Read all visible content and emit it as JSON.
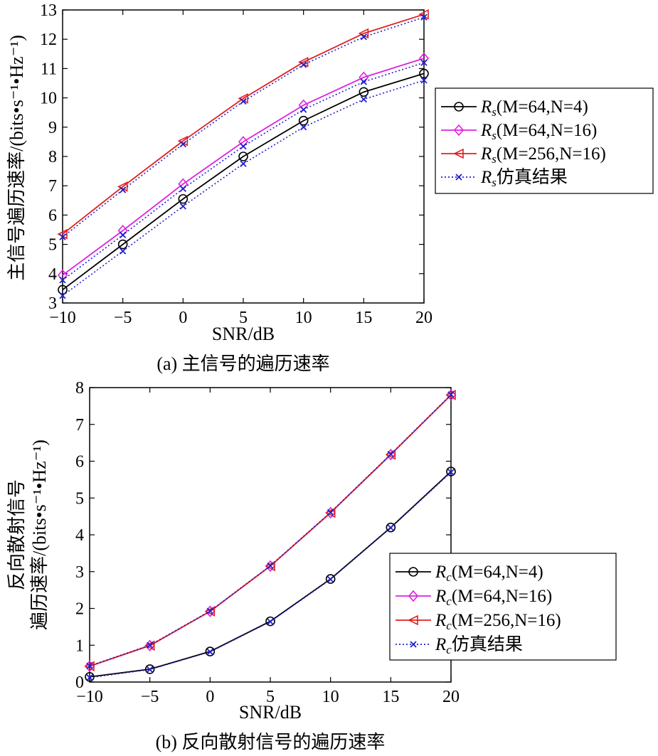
{
  "chart_data": [
    {
      "type": "line",
      "caption": "(a) 主信号的遍历速率",
      "xlabel": "SNR/dB",
      "ylabel": "主信号遍历速率/(bits•s⁻¹•Hz⁻¹)",
      "xlim": [
        -10,
        20
      ],
      "ylim": [
        3,
        13
      ],
      "x_ticks": [
        -10,
        -5,
        0,
        5,
        10,
        15,
        20
      ],
      "x_tick_labels": [
        "−10",
        "−5",
        "0",
        "5",
        "10",
        "15",
        "20"
      ],
      "y_ticks": [
        3,
        4,
        5,
        6,
        7,
        8,
        9,
        10,
        11,
        12,
        13
      ],
      "y_tick_labels": [
        "3",
        "4",
        "5",
        "6",
        "7",
        "8",
        "9",
        "10",
        "11",
        "12",
        "13"
      ],
      "grid": false,
      "legend_position": "right",
      "x": [
        -10,
        -5,
        0,
        5,
        10,
        15,
        20
      ],
      "series": [
        {
          "name": "R_s(M=64,N=4)",
          "base": "R",
          "sub": "s",
          "params": "(M=64,N=4)",
          "color": "#000000",
          "marker": "circle",
          "dash": "solid",
          "values": [
            3.45,
            5.0,
            6.55,
            8.0,
            9.22,
            10.2,
            10.83
          ]
        },
        {
          "name": "R_s(M=64,N=16)",
          "base": "R",
          "sub": "s",
          "params": "(M=64,N=16)",
          "color": "#e020e0",
          "marker": "diamond",
          "dash": "solid",
          "values": [
            3.95,
            5.47,
            7.06,
            8.5,
            9.75,
            10.7,
            11.35
          ]
        },
        {
          "name": "R_s(M=256,N=16)",
          "base": "R",
          "sub": "s",
          "params": "(M=256,N=16)",
          "color": "#e02020",
          "marker": "triangle-left",
          "dash": "solid",
          "values": [
            5.35,
            6.97,
            8.53,
            9.98,
            11.22,
            12.2,
            12.85
          ]
        },
        {
          "name": "R_s仿真结果",
          "base": "R",
          "sub": "s",
          "params": "仿真结果",
          "color": "#2020d0",
          "marker": "x",
          "dash": "dotted",
          "legend_only": false,
          "values_sets": [
            [
              3.25,
              4.77,
              6.3,
              7.75,
              9.0,
              9.95,
              10.6
            ],
            [
              3.78,
              5.32,
              6.9,
              8.35,
              9.6,
              10.55,
              11.2
            ],
            [
              5.25,
              6.86,
              8.42,
              9.88,
              11.13,
              12.08,
              12.75
            ]
          ]
        }
      ]
    },
    {
      "type": "line",
      "caption": "(b) 反向散射信号的遍历速率",
      "xlabel": "SNR/dB",
      "ylabel_line1": "反向散射信号",
      "ylabel_line2": "遍历速率/(bits•s⁻¹•Hz⁻¹)",
      "xlim": [
        -10,
        20
      ],
      "ylim": [
        0,
        8
      ],
      "x_ticks": [
        -10,
        -5,
        0,
        5,
        10,
        15,
        20
      ],
      "x_tick_labels": [
        "−10",
        "−5",
        "0",
        "5",
        "10",
        "15",
        "20"
      ],
      "y_ticks": [
        0,
        1,
        2,
        3,
        4,
        5,
        6,
        7,
        8
      ],
      "y_tick_labels": [
        "0",
        "1",
        "2",
        "3",
        "4",
        "5",
        "6",
        "7",
        "8"
      ],
      "grid": false,
      "legend_position": "bottom-right",
      "x": [
        -10,
        -5,
        0,
        5,
        10,
        15,
        20
      ],
      "series": [
        {
          "name": "R_c(M=64,N=4)",
          "base": "R",
          "sub": "c",
          "params": "(M=64,N=4)",
          "color": "#000000",
          "marker": "circle",
          "dash": "solid",
          "values": [
            0.14,
            0.35,
            0.83,
            1.65,
            2.8,
            4.2,
            5.72
          ]
        },
        {
          "name": "R_c(M=64,N=16)",
          "base": "R",
          "sub": "c",
          "params": "(M=64,N=16)",
          "color": "#e020e0",
          "marker": "diamond",
          "dash": "solid",
          "values": [
            0.43,
            0.99,
            1.92,
            3.15,
            4.6,
            6.18,
            7.8
          ]
        },
        {
          "name": "R_c(M=256,N=16)",
          "base": "R",
          "sub": "c",
          "params": "(M=256,N=16)",
          "color": "#e02020",
          "marker": "triangle-left",
          "dash": "solid",
          "values": [
            0.43,
            0.99,
            1.92,
            3.15,
            4.6,
            6.18,
            7.8
          ]
        },
        {
          "name": "R_c仿真结果",
          "base": "R",
          "sub": "c",
          "params": "仿真结果",
          "color": "#2020d0",
          "marker": "x",
          "dash": "dotted",
          "values_sets": [
            [
              0.12,
              0.34,
              0.82,
              1.64,
              2.79,
              4.19,
              5.7
            ],
            [
              0.44,
              1.0,
              1.93,
              3.16,
              4.61,
              6.19,
              7.81
            ]
          ]
        }
      ]
    }
  ]
}
